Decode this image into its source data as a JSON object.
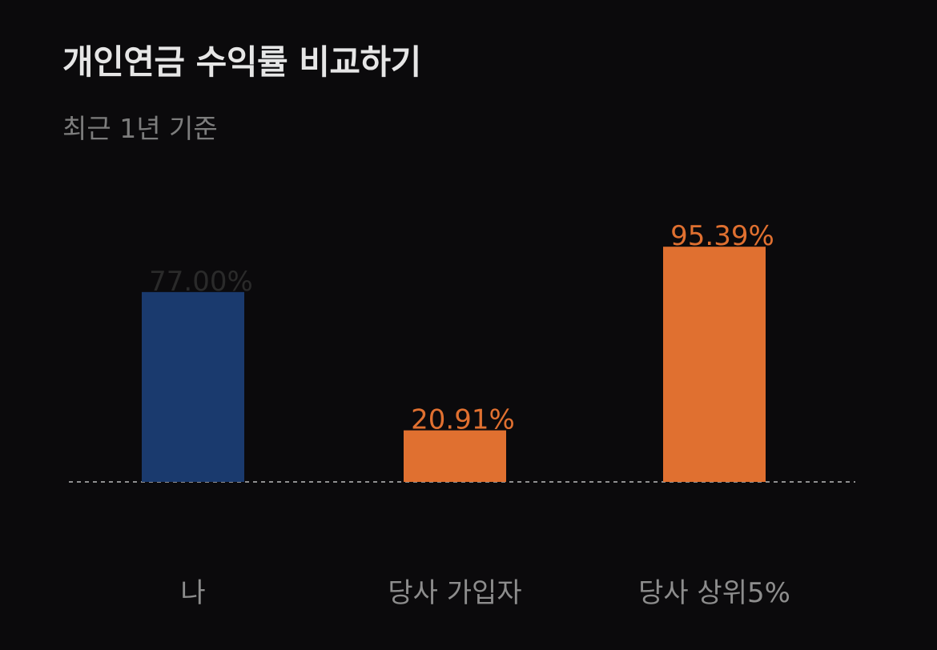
{
  "header": {
    "title": "개인연금 수익률 비교하기",
    "subtitle": "최근 1년 기준"
  },
  "colors": {
    "background": "#0b0a0c",
    "bar_me": "#1a3a6e",
    "bar_other": "#e07030",
    "label_me": "#2a2a2a",
    "label_other": "#e07030",
    "baseline": "#bbbbbb"
  },
  "chart_data": {
    "type": "bar",
    "title": "개인연금 수익률 비교하기",
    "subtitle": "최근 1년 기준",
    "categories": [
      "나",
      "당사 가입자",
      "당사 상위5%"
    ],
    "values": [
      77.0,
      20.91,
      95.39
    ],
    "value_labels": [
      "77.00%",
      "20.91%",
      "95.39%"
    ],
    "bar_colors": [
      "#1a3a6e",
      "#e07030",
      "#e07030"
    ],
    "label_colors": [
      "#2a2a2a",
      "#e07030",
      "#e07030"
    ],
    "xlabel": "",
    "ylabel": "",
    "ylim": [
      0,
      100
    ],
    "grid": false,
    "baseline": "dashed"
  }
}
